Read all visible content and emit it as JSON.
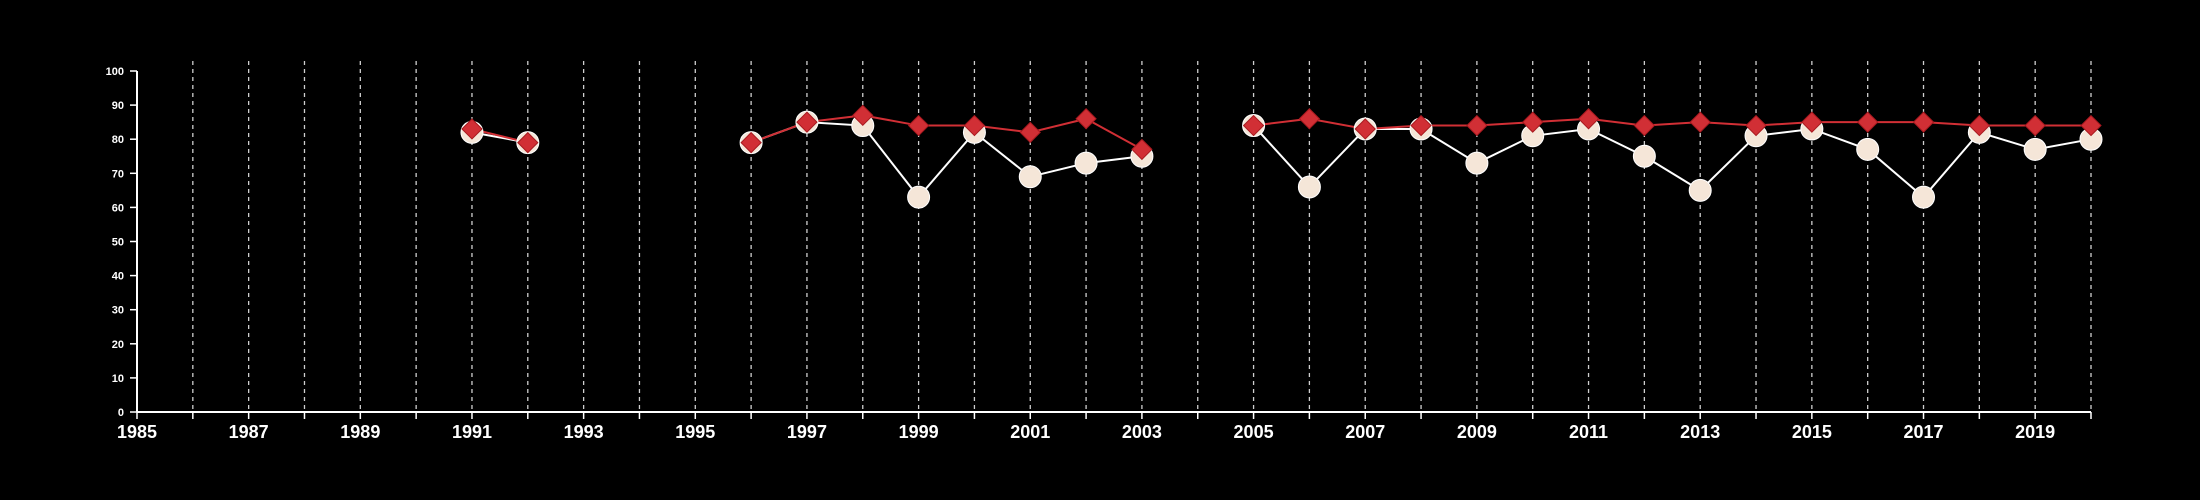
{
  "chart_data": {
    "type": "line",
    "title": "",
    "xlabel": "",
    "ylabel": "",
    "xlim": [
      1985,
      2020
    ],
    "ylim": [
      0,
      100
    ],
    "x_ticks": [
      "1985",
      "1987",
      "1989",
      "1991",
      "1993",
      "1995",
      "1997",
      "1999",
      "2001",
      "2003",
      "2005",
      "2007",
      "2009",
      "2011",
      "2013",
      "2015",
      "2017",
      "2019"
    ],
    "y_ticks": [
      "0",
      "10",
      "20",
      "30",
      "40",
      "50",
      "60",
      "70",
      "80",
      "90",
      "100"
    ],
    "vertical_gridlines": "dashed at every year",
    "colors": {
      "background": "#000000",
      "axis": "#ffffff",
      "grid": "#cfcfcf",
      "series_circle": "#f5e6d8",
      "series_circle_line": "#ffffff",
      "series_diamond": "#d12f35"
    },
    "series": [
      {
        "marker": "circle",
        "color": "#f5e6d8",
        "points": [
          {
            "x": 1991,
            "y": 82
          },
          {
            "x": 1992,
            "y": 79
          },
          {
            "x": 1996,
            "y": 79
          },
          {
            "x": 1997,
            "y": 85
          },
          {
            "x": 1998,
            "y": 84
          },
          {
            "x": 1999,
            "y": 63
          },
          {
            "x": 2000,
            "y": 82
          },
          {
            "x": 2001,
            "y": 69
          },
          {
            "x": 2002,
            "y": 73
          },
          {
            "x": 2003,
            "y": 75
          },
          {
            "x": 2005,
            "y": 84
          },
          {
            "x": 2006,
            "y": 66
          },
          {
            "x": 2007,
            "y": 83
          },
          {
            "x": 2008,
            "y": 83
          },
          {
            "x": 2009,
            "y": 73
          },
          {
            "x": 2010,
            "y": 81
          },
          {
            "x": 2011,
            "y": 83
          },
          {
            "x": 2012,
            "y": 75
          },
          {
            "x": 2013,
            "y": 65
          },
          {
            "x": 2014,
            "y": 81
          },
          {
            "x": 2015,
            "y": 83
          },
          {
            "x": 2016,
            "y": 77
          },
          {
            "x": 2017,
            "y": 63
          },
          {
            "x": 2018,
            "y": 82
          },
          {
            "x": 2019,
            "y": 77
          },
          {
            "x": 2020,
            "y": 80
          }
        ]
      },
      {
        "marker": "diamond",
        "color": "#d12f35",
        "points": [
          {
            "x": 1991,
            "y": 83
          },
          {
            "x": 1992,
            "y": 79
          },
          {
            "x": 1996,
            "y": 79
          },
          {
            "x": 1997,
            "y": 85
          },
          {
            "x": 1998,
            "y": 87
          },
          {
            "x": 1999,
            "y": 84
          },
          {
            "x": 2000,
            "y": 84
          },
          {
            "x": 2001,
            "y": 82
          },
          {
            "x": 2002,
            "y": 86
          },
          {
            "x": 2003,
            "y": 77
          },
          {
            "x": 2005,
            "y": 84
          },
          {
            "x": 2006,
            "y": 86
          },
          {
            "x": 2007,
            "y": 83
          },
          {
            "x": 2008,
            "y": 84
          },
          {
            "x": 2009,
            "y": 84
          },
          {
            "x": 2010,
            "y": 85
          },
          {
            "x": 2011,
            "y": 86
          },
          {
            "x": 2012,
            "y": 84
          },
          {
            "x": 2013,
            "y": 85
          },
          {
            "x": 2014,
            "y": 84
          },
          {
            "x": 2015,
            "y": 85
          },
          {
            "x": 2016,
            "y": 85
          },
          {
            "x": 2017,
            "y": 85
          },
          {
            "x": 2018,
            "y": 84
          },
          {
            "x": 2019,
            "y": 84
          },
          {
            "x": 2020,
            "y": 84
          }
        ]
      }
    ]
  }
}
